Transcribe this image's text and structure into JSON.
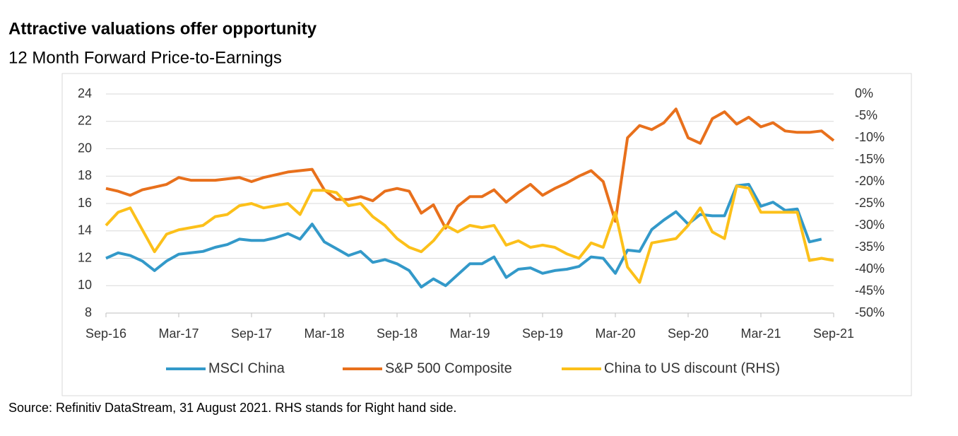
{
  "chart_data": {
    "type": "line",
    "title": "Attractive valuations offer opportunity",
    "subtitle": "12 Month Forward Price-to-Earnings",
    "source": "Source: Refinitiv DataStream, 31 August 2021. RHS stands for Right hand side.",
    "categories": [
      "Sep-16",
      null,
      null,
      null,
      null,
      null,
      "Mar-17",
      null,
      null,
      null,
      null,
      null,
      "Sep-17",
      null,
      null,
      null,
      null,
      null,
      "Mar-18",
      null,
      null,
      null,
      null,
      null,
      "Sep-18",
      null,
      null,
      null,
      null,
      null,
      "Mar-19",
      null,
      null,
      null,
      null,
      null,
      "Sep-19",
      null,
      null,
      null,
      null,
      null,
      "Mar-20",
      null,
      null,
      null,
      null,
      null,
      "Sep-20",
      null,
      null,
      null,
      null,
      null,
      "Mar-21",
      null,
      null,
      null,
      null,
      null,
      "Sep-21"
    ],
    "series": [
      {
        "name": "MSCI China",
        "color": "#3399c9",
        "values": [
          12.0,
          12.4,
          12.2,
          11.8,
          11.1,
          11.8,
          12.3,
          12.4,
          12.5,
          12.8,
          13.0,
          13.4,
          13.3,
          13.3,
          13.5,
          13.8,
          13.4,
          14.5,
          13.2,
          12.7,
          12.2,
          12.5,
          11.7,
          11.9,
          11.6,
          11.1,
          9.9,
          10.5,
          10.0,
          10.8,
          11.6,
          11.6,
          12.1,
          10.6,
          11.2,
          11.3,
          10.9,
          11.1,
          11.2,
          11.4,
          12.1,
          12.0,
          10.9,
          12.6,
          12.5,
          14.1,
          14.8,
          15.4,
          14.5,
          15.2,
          15.1,
          15.1,
          17.3,
          17.4,
          15.8,
          16.1,
          15.5,
          15.6,
          13.2,
          13.4,
          null
        ]
      },
      {
        "name": "S&P 500 Composite",
        "color": "#e8701c",
        "values": [
          17.1,
          16.9,
          16.6,
          17.0,
          17.2,
          17.4,
          17.9,
          17.7,
          17.7,
          17.7,
          17.8,
          17.9,
          17.6,
          17.9,
          18.1,
          18.3,
          18.4,
          18.5,
          17.0,
          16.3,
          16.3,
          16.5,
          16.2,
          16.9,
          17.1,
          16.9,
          15.3,
          15.9,
          14.2,
          15.8,
          16.5,
          16.5,
          17.0,
          16.1,
          16.8,
          17.4,
          16.6,
          17.1,
          17.5,
          18.0,
          18.4,
          17.6,
          14.7,
          20.8,
          21.7,
          21.4,
          21.9,
          22.9,
          20.8,
          20.4,
          22.2,
          22.7,
          21.8,
          22.3,
          21.6,
          21.9,
          21.3,
          21.2,
          21.2,
          21.3,
          20.6
        ]
      },
      {
        "name": "China to US discount (RHS)",
        "color": "#fcc01a",
        "axis": "y2",
        "values": [
          -30,
          -27,
          -26,
          -31,
          -36,
          -32,
          -31,
          -30.5,
          -30,
          -28,
          -27.5,
          -25.5,
          -25,
          -26,
          -25.5,
          -25,
          -27.5,
          -22,
          -22,
          -22.5,
          -25.5,
          -25,
          -28,
          -30,
          -33,
          -35,
          -36,
          -33.5,
          -30,
          -31.5,
          -30,
          -30.5,
          -30,
          -34.5,
          -33.5,
          -35,
          -34.5,
          -35,
          -36.5,
          -37.5,
          -34,
          -35,
          -27,
          -39.5,
          -43,
          -34,
          -33.5,
          -33,
          -30,
          -26,
          -31.5,
          -33,
          -21,
          -21.5,
          -27,
          -27,
          -27,
          -27,
          -38,
          -37.5,
          -38
        ]
      }
    ],
    "ylim": [
      8,
      24
    ],
    "yticks": [
      8,
      10,
      12,
      14,
      16,
      18,
      20,
      22,
      24
    ],
    "y2lim": [
      -50,
      0
    ],
    "y2ticks": [
      {
        "value": -50,
        "label": "-50%"
      },
      {
        "value": -45,
        "label": "-45%"
      },
      {
        "value": -40,
        "label": "-40%"
      },
      {
        "value": -35,
        "label": "-35%"
      },
      {
        "value": -30,
        "label": "-30%"
      },
      {
        "value": -25,
        "label": "-25%"
      },
      {
        "value": -20,
        "label": "-20%"
      },
      {
        "value": -15,
        "label": "-15%"
      },
      {
        "value": -10,
        "label": "-10%"
      },
      {
        "value": -5,
        "label": "-5%"
      },
      {
        "value": 0,
        "label": "0%"
      }
    ],
    "grid": true,
    "legend": "bottom"
  }
}
